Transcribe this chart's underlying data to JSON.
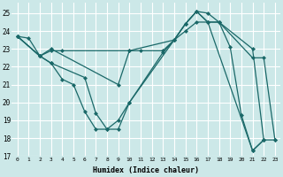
{
  "xlabel": "Humidex (Indice chaleur)",
  "xlim": [
    -0.5,
    23.5
  ],
  "ylim": [
    17,
    25.6
  ],
  "yticks": [
    17,
    18,
    19,
    20,
    21,
    22,
    23,
    24,
    25
  ],
  "xticks": [
    0,
    1,
    2,
    3,
    4,
    5,
    6,
    7,
    8,
    9,
    10,
    11,
    12,
    13,
    14,
    15,
    16,
    17,
    18,
    19,
    20,
    21,
    22,
    23
  ],
  "bg_color": "#cce8e8",
  "grid_color": "#ffffff",
  "line_color": "#1a6868",
  "lines": [
    {
      "x": [
        0,
        1,
        2,
        3,
        6,
        7,
        8,
        9,
        10,
        13,
        14,
        15,
        16,
        17,
        18,
        19,
        20,
        21,
        22
      ],
      "y": [
        23.7,
        23.6,
        22.6,
        22.2,
        21.4,
        19.4,
        18.5,
        18.5,
        20.0,
        22.8,
        23.5,
        24.4,
        25.1,
        25.0,
        24.5,
        23.1,
        19.3,
        17.3,
        17.9
      ]
    },
    {
      "x": [
        0,
        2,
        3,
        4,
        10,
        11,
        13,
        14,
        15,
        16,
        17,
        18,
        21,
        22,
        23
      ],
      "y": [
        23.7,
        22.6,
        22.9,
        22.9,
        22.9,
        22.9,
        22.9,
        23.5,
        24.0,
        24.5,
        24.5,
        24.5,
        22.5,
        22.5,
        17.9
      ]
    },
    {
      "x": [
        0,
        2,
        3,
        9,
        10,
        14,
        15,
        16,
        17,
        18,
        21,
        22,
        23
      ],
      "y": [
        23.7,
        22.6,
        23.0,
        21.0,
        22.9,
        23.5,
        24.4,
        25.1,
        24.5,
        24.5,
        23.0,
        17.9,
        17.9
      ]
    },
    {
      "x": [
        0,
        2,
        3,
        4,
        5,
        6,
        7,
        8,
        9,
        10,
        14,
        15,
        16,
        17,
        21,
        22
      ],
      "y": [
        23.7,
        22.6,
        22.2,
        21.3,
        21.0,
        19.5,
        18.5,
        18.5,
        19.0,
        20.0,
        23.5,
        24.4,
        25.1,
        24.5,
        17.3,
        17.9
      ]
    }
  ]
}
